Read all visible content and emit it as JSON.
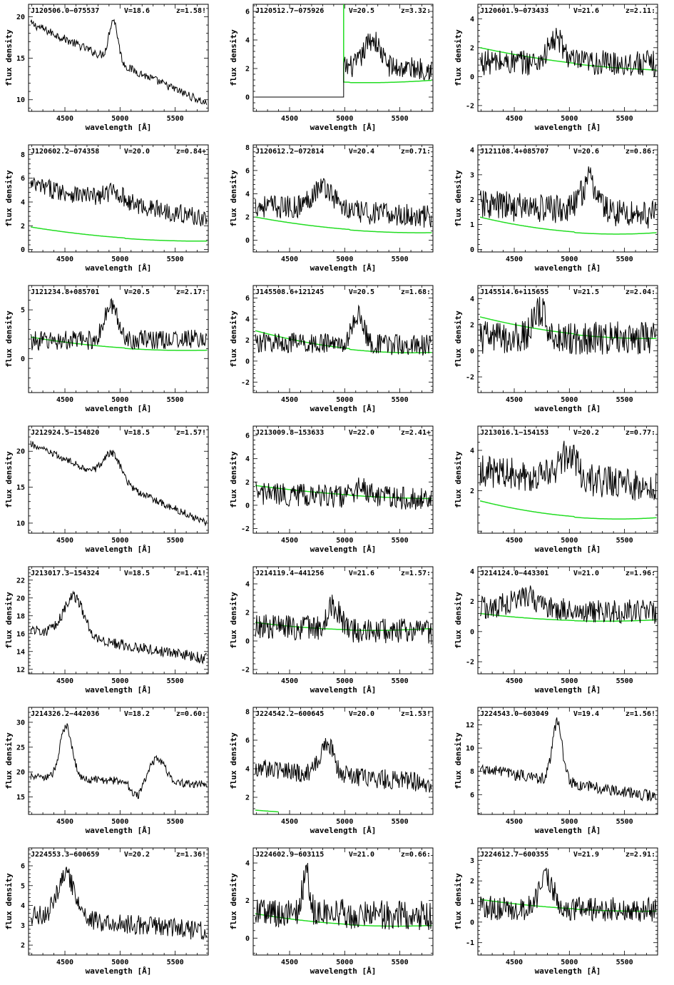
{
  "axis_labels": {
    "x": "wavelength [Å]",
    "y": "flux density"
  },
  "colors": {
    "spectrum": "#000000",
    "noise": "#22dd22",
    "frame": "#000000"
  },
  "chart_data": [
    {
      "type": "line",
      "id": "J120506.0-075537",
      "title": "J120506.0−075537",
      "vmag": "V=18.6",
      "z": "z=1.58!",
      "xlim": [
        4170,
        5800
      ],
      "ylim": [
        8.6,
        21.5
      ],
      "xticks": [
        4500,
        5000,
        5500
      ],
      "yticks": [
        10,
        15,
        20
      ],
      "peaks": [
        [
          4940,
          5,
          40
        ]
      ],
      "start": 19.2,
      "end": 9.5,
      "noise_amp": 0.5,
      "series": [
        {
          "name": "spectrum"
        }
      ],
      "has_noise": false
    },
    {
      "type": "line",
      "id": "J120512.7-075926",
      "title": "J120512.7−075926",
      "vmag": "V=20.5",
      "z": "z=3.32:",
      "xlim": [
        4170,
        5800
      ],
      "ylim": [
        -1,
        6.5
      ],
      "xticks": [
        4500,
        5000,
        5500
      ],
      "yticks": [
        0,
        2,
        4,
        6
      ],
      "peaks": [
        [
          5250,
          2.0,
          70
        ]
      ],
      "start": 2.2,
      "end": 2.0,
      "noise_amp": 0.8,
      "cut": 4990,
      "noise_curve": [
        1.5,
        0.75,
        1.2
      ],
      "has_noise": true
    },
    {
      "type": "line",
      "id": "J120601.9-073433",
      "title": "J120601.9−073433",
      "vmag": "V=21.6",
      "z": "z=2.11:",
      "xlim": [
        4170,
        5800
      ],
      "ylim": [
        -2.4,
        5
      ],
      "xticks": [
        4500,
        5000,
        5500
      ],
      "yticks": [
        -2,
        0,
        2,
        4
      ],
      "peaks": [
        [
          4880,
          1.6,
          70
        ]
      ],
      "start": 1.0,
      "end": 0.9,
      "noise_amp": 0.9,
      "noise_curve": [
        2.0,
        0.7,
        0.5
      ],
      "has_noise": true
    },
    {
      "type": "line",
      "id": "J120602.2-074358",
      "title": "J120602.2−074358",
      "vmag": "V=20.0",
      "z": "z=0.84+",
      "xlim": [
        4170,
        5800
      ],
      "ylim": [
        -0.2,
        8.8
      ],
      "xticks": [
        4500,
        5000,
        5500
      ],
      "yticks": [
        0,
        2,
        4,
        6,
        8
      ],
      "peaks": [
        [
          4950,
          0.8,
          80
        ]
      ],
      "start": 5.4,
      "end": 2.6,
      "noise_amp": 0.8,
      "noise_curve": [
        1.9,
        0.7,
        0.75
      ],
      "has_noise": true
    },
    {
      "type": "line",
      "id": "J120612.2-072814",
      "title": "J120612.2−072814",
      "vmag": "V=20.4",
      "z": "z=0.71:",
      "xlim": [
        4170,
        5800
      ],
      "ylim": [
        -1,
        8.2
      ],
      "xticks": [
        4500,
        5000,
        5500
      ],
      "yticks": [
        0,
        2,
        4,
        6,
        8
      ],
      "peaks": [
        [
          4800,
          2.0,
          100
        ]
      ],
      "start": 3.0,
      "end": 2.0,
      "noise_amp": 1.0,
      "noise_curve": [
        2.0,
        0.6,
        0.7
      ],
      "has_noise": true
    },
    {
      "type": "line",
      "id": "J121108.4+085707",
      "title": "J121108.4+085707",
      "vmag": "V=20.6",
      "z": "z=0.86:",
      "xlim": [
        4170,
        5800
      ],
      "ylim": [
        -0.1,
        4.2
      ],
      "xticks": [
        4500,
        5000,
        5500
      ],
      "yticks": [
        0,
        1,
        2,
        3,
        4
      ],
      "peaks": [
        [
          5180,
          1.2,
          70
        ]
      ],
      "start": 1.8,
      "end": 1.4,
      "noise_amp": 0.6,
      "noise_curve": [
        1.3,
        0.45,
        0.7
      ],
      "has_noise": true
    },
    {
      "type": "line",
      "id": "J121234.8+085701",
      "title": "J121234.8+085701",
      "vmag": "V=20.5",
      "z": "z=2.17:",
      "xlim": [
        4170,
        5800
      ],
      "ylim": [
        -3.5,
        7.5
      ],
      "xticks": [
        4500,
        5000,
        5500
      ],
      "yticks": [
        0,
        5
      ],
      "peaks": [
        [
          4920,
          3.5,
          60
        ]
      ],
      "start": 1.8,
      "end": 2.0,
      "noise_amp": 1.0,
      "noise_curve": [
        2.2,
        0.7,
        0.9
      ],
      "has_noise": true
    },
    {
      "type": "line",
      "id": "J145508.6+121245",
      "title": "J145508.6+121245",
      "vmag": "V=20.5",
      "z": "z=1.68:",
      "xlim": [
        4170,
        5800
      ],
      "ylim": [
        -3,
        7.2
      ],
      "xticks": [
        4500,
        5000,
        5500
      ],
      "yticks": [
        -2,
        0,
        2,
        4,
        6
      ],
      "peaks": [
        [
          5120,
          2.8,
          50
        ]
      ],
      "start": 1.8,
      "end": 1.5,
      "noise_amp": 1.0,
      "noise_curve": [
        2.9,
        0.6,
        0.9
      ],
      "has_noise": true
    },
    {
      "type": "line",
      "id": "J145514.6+115655",
      "title": "J145514.6+115655",
      "vmag": "V=21.5",
      "z": "z=2.04:",
      "xlim": [
        4170,
        5800
      ],
      "ylim": [
        -3.2,
        5
      ],
      "xticks": [
        4500,
        5000,
        5500
      ],
      "yticks": [
        -2,
        0,
        2,
        4
      ],
      "peaks": [
        [
          4730,
          2.0,
          60
        ]
      ],
      "start": 1.0,
      "end": 1.0,
      "noise_amp": 1.3,
      "noise_curve": [
        2.6,
        0.9,
        1.0
      ],
      "has_noise": true
    },
    {
      "type": "line",
      "id": "J212924.5-154820",
      "title": "J212924.5−154820",
      "vmag": "V=18.5",
      "z": "z=1.57!",
      "xlim": [
        4170,
        5800
      ],
      "ylim": [
        8.6,
        23.5
      ],
      "xticks": [
        4500,
        5000,
        5500
      ],
      "yticks": [
        10,
        15,
        20
      ],
      "peaks": [
        [
          4930,
          3.8,
          80
        ]
      ],
      "start": 21.0,
      "end": 10.0,
      "noise_amp": 0.5,
      "has_noise": false
    },
    {
      "type": "line",
      "id": "J213009.8-153633",
      "title": "J213009.8−153633",
      "vmag": "V=22.0",
      "z": "z=2.41+",
      "xlim": [
        4170,
        5800
      ],
      "ylim": [
        -2.4,
        6.8
      ],
      "xticks": [
        4500,
        5000,
        5500
      ],
      "yticks": [
        -2,
        0,
        2,
        4,
        6
      ],
      "peaks": [
        [
          5150,
          0.8,
          60
        ]
      ],
      "start": 1.0,
      "end": 0.5,
      "noise_amp": 1.0,
      "noise_curve": [
        1.7,
        0.7,
        0.6
      ],
      "has_noise": true
    },
    {
      "type": "line",
      "id": "J213016.1-154153",
      "title": "J213016.1−154153",
      "vmag": "V=20.2",
      "z": "z=0.77:",
      "xlim": [
        4170,
        5800
      ],
      "ylim": [
        -0.1,
        5.2
      ],
      "xticks": [
        4500,
        5000,
        5500
      ],
      "yticks": [
        2,
        4
      ],
      "peaks": [
        [
          4990,
          1.2,
          80
        ]
      ],
      "start": 3.0,
      "end": 2.2,
      "noise_amp": 0.8,
      "noise_curve": [
        1.5,
        0.4,
        0.7
      ],
      "has_noise": true
    },
    {
      "type": "line",
      "id": "J213017.3-154324",
      "title": "J213017.3−154324",
      "vmag": "V=18.5",
      "z": "z=1.41!",
      "xlim": [
        4170,
        5800
      ],
      "ylim": [
        11.5,
        23.5
      ],
      "xticks": [
        4500,
        5000,
        5500
      ],
      "yticks": [
        12,
        14,
        16,
        18,
        20,
        22
      ],
      "peaks": [
        [
          4580,
          4.5,
          90
        ]
      ],
      "start": 16.5,
      "end": 13.2,
      "noise_amp": 0.6,
      "has_noise": false
    },
    {
      "type": "line",
      "id": "J214119.4-441256",
      "title": "J214119.4−441256",
      "vmag": "V=21.6",
      "z": "z=1.57:",
      "xlim": [
        4170,
        5800
      ],
      "ylim": [
        -2.3,
        5.2
      ],
      "xticks": [
        4500,
        5000,
        5500
      ],
      "yticks": [
        -2,
        0,
        2,
        4
      ],
      "peaks": [
        [
          4900,
          1.6,
          60
        ]
      ],
      "start": 1.0,
      "end": 0.6,
      "noise_amp": 0.9,
      "noise_curve": [
        1.3,
        0.5,
        0.9
      ],
      "has_noise": true
    },
    {
      "type": "line",
      "id": "J214124.0-443301",
      "title": "J214124.0−443301",
      "vmag": "V=21.0",
      "z": "z=1.96:",
      "xlim": [
        4170,
        5800
      ],
      "ylim": [
        -2.8,
        4.3
      ],
      "xticks": [
        4500,
        5000,
        5500
      ],
      "yticks": [
        -2,
        0,
        2,
        4
      ],
      "peaks": [
        [
          4600,
          0.8,
          120
        ]
      ],
      "start": 1.6,
      "end": 1.3,
      "noise_amp": 0.8,
      "noise_curve": [
        1.2,
        0.5,
        0.8
      ],
      "has_noise": true
    },
    {
      "type": "line",
      "id": "J214326.2-442036",
      "title": "J214326.2−442036",
      "vmag": "V=18.2",
      "z": "z=0.60:",
      "xlim": [
        4170,
        5800
      ],
      "ylim": [
        11.5,
        33
      ],
      "xticks": [
        4500,
        5000,
        5500
      ],
      "yticks": [
        15,
        20,
        25,
        30
      ],
      "peaks": [
        [
          4510,
          10.5,
          55
        ],
        [
          5340,
          4.8,
          70
        ]
      ],
      "start": 19.0,
      "end": 17.5,
      "dip": [
        5150,
        -3,
        50
      ],
      "noise_amp": 0.8,
      "has_noise": false
    },
    {
      "type": "line",
      "id": "J224542.2-600645",
      "title": "J224542.2−600645",
      "vmag": "V=20.0",
      "z": "z=1.53!",
      "xlim": [
        4170,
        5800
      ],
      "ylim": [
        0.8,
        8.3
      ],
      "xticks": [
        4500,
        5000,
        5500
      ],
      "yticks": [
        2,
        4,
        6,
        8
      ],
      "peaks": [
        [
          4840,
          2.2,
          60
        ]
      ],
      "start": 4.0,
      "end": 3.0,
      "noise_amp": 0.7,
      "noise_curve": [
        1.1,
        0.6,
        0.5
      ],
      "noise_stop": 4400,
      "has_noise": true
    },
    {
      "type": "line",
      "id": "J224543.0-603049",
      "title": "J224543.0−603049",
      "vmag": "V=19.4",
      "z": "z=1.56!",
      "xlim": [
        4170,
        5800
      ],
      "ylim": [
        4.3,
        13.5
      ],
      "xticks": [
        4500,
        5000,
        5500
      ],
      "yticks": [
        6,
        8,
        10,
        12
      ],
      "peaks": [
        [
          4890,
          5.0,
          45
        ]
      ],
      "start": 8.2,
      "end": 5.8,
      "noise_amp": 0.5,
      "has_noise": false
    },
    {
      "type": "line",
      "id": "J224553.3-600659",
      "title": "J224553.3−600659",
      "vmag": "V=20.2",
      "z": "z=1.36!",
      "xlim": [
        4170,
        5800
      ],
      "ylim": [
        1.5,
        6.9
      ],
      "xticks": [
        4500,
        5000,
        5500
      ],
      "yticks": [
        2,
        3,
        4,
        5,
        6
      ],
      "peaks": [
        [
          4510,
          2.2,
          80
        ]
      ],
      "start": 3.5,
      "end": 2.7,
      "noise_amp": 0.5,
      "has_noise": false
    },
    {
      "type": "line",
      "id": "J224602.9-603115",
      "title": "J224602.9−603115",
      "vmag": "V=21.0",
      "z": "z=0.66:",
      "xlim": [
        4170,
        5800
      ],
      "ylim": [
        -0.9,
        4.8
      ],
      "xticks": [
        4500,
        5000,
        5500
      ],
      "yticks": [
        0,
        2,
        4
      ],
      "peaks": [
        [
          4650,
          2.3,
          30
        ]
      ],
      "start": 1.4,
      "end": 1.2,
      "noise_amp": 0.8,
      "noise_curve": [
        1.3,
        0.5,
        0.7
      ],
      "has_noise": true
    },
    {
      "type": "line",
      "id": "J224612.7-600355",
      "title": "J224612.7−600355",
      "vmag": "V=21.9",
      "z": "z=2.91:",
      "xlim": [
        4170,
        5800
      ],
      "ylim": [
        -1.6,
        3.6
      ],
      "xticks": [
        4500,
        5000,
        5500
      ],
      "yticks": [
        -1,
        0,
        1,
        2,
        3
      ],
      "peaks": [
        [
          4790,
          1.6,
          60
        ]
      ],
      "start": 0.7,
      "end": 0.6,
      "noise_amp": 0.6,
      "noise_curve": [
        1.1,
        0.5,
        0.55
      ],
      "has_noise": true
    }
  ]
}
